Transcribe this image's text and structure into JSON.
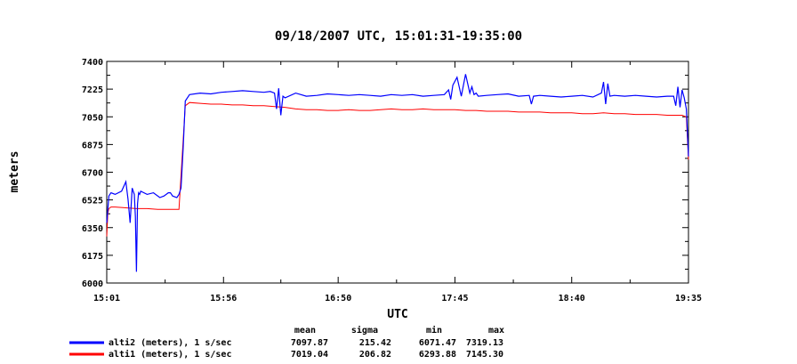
{
  "chart_data": {
    "type": "line",
    "title": "09/18/2007  UTC, 15:01:31-19:35:00",
    "xlabel": "UTC",
    "ylabel": "meters",
    "x_ticks": [
      "15:01",
      "15:56",
      "16:50",
      "17:45",
      "18:40",
      "19:35"
    ],
    "x_tick_minutes": [
      901,
      956,
      1010,
      1065,
      1120,
      1175
    ],
    "xlim_minutes": [
      901,
      1175
    ],
    "y_ticks": [
      "6000",
      "6175",
      "6350",
      "6525",
      "6700",
      "6875",
      "7050",
      "7225",
      "7400"
    ],
    "ylim": [
      6000,
      7400
    ],
    "grid": false,
    "legend_position": "bottom-left",
    "stat_headers": [
      "mean",
      "sigma",
      "min",
      "max"
    ],
    "series": [
      {
        "name": "alti2 (meters), 1 s/sec",
        "color": "#0000ff",
        "stats": [
          "7097.87",
          "215.42",
          "6071.47",
          "7319.13"
        ],
        "x_minutes": [
          901,
          902,
          903,
          905,
          908,
          910,
          911,
          912,
          913,
          914,
          914.5,
          915,
          915.5,
          916,
          916.5,
          917,
          920,
          923,
          926,
          928,
          930,
          931,
          932,
          934,
          935,
          936,
          937,
          938,
          940,
          945,
          950,
          955,
          960,
          965,
          970,
          975,
          978,
          980,
          981,
          982,
          983,
          984,
          985,
          990,
          995,
          1000,
          1005,
          1010,
          1015,
          1020,
          1025,
          1030,
          1035,
          1040,
          1045,
          1050,
          1055,
          1060,
          1062,
          1063,
          1064,
          1066,
          1068,
          1070,
          1072,
          1073,
          1074,
          1075,
          1076,
          1080,
          1085,
          1090,
          1095,
          1100,
          1101,
          1102,
          1105,
          1110,
          1115,
          1120,
          1125,
          1130,
          1134,
          1135,
          1136,
          1137,
          1138,
          1140,
          1145,
          1150,
          1155,
          1160,
          1165,
          1168,
          1169,
          1170,
          1171,
          1172,
          1173,
          1174,
          1175
        ],
        "values": [
          6380,
          6550,
          6570,
          6560,
          6580,
          6640,
          6530,
          6380,
          6600,
          6560,
          6420,
          6071,
          6500,
          6570,
          6560,
          6580,
          6560,
          6570,
          6540,
          6550,
          6570,
          6570,
          6550,
          6540,
          6560,
          6600,
          6850,
          7150,
          7190,
          7200,
          7195,
          7205,
          7210,
          7215,
          7210,
          7205,
          7210,
          7200,
          7100,
          7230,
          7060,
          7180,
          7170,
          7200,
          7180,
          7185,
          7195,
          7190,
          7185,
          7190,
          7185,
          7180,
          7190,
          7185,
          7190,
          7180,
          7185,
          7190,
          7220,
          7160,
          7250,
          7300,
          7180,
          7319,
          7200,
          7240,
          7190,
          7200,
          7180,
          7185,
          7190,
          7195,
          7180,
          7185,
          7130,
          7180,
          7185,
          7180,
          7175,
          7180,
          7185,
          7175,
          7200,
          7270,
          7130,
          7260,
          7180,
          7185,
          7180,
          7185,
          7180,
          7175,
          7180,
          7180,
          7120,
          7240,
          7110,
          7220,
          7170,
          7100,
          6800
        ]
      },
      {
        "name": "alti1 (meters), 1 s/sec",
        "color": "#ff0000",
        "stats": [
          "7019.04",
          "206.82",
          "6293.88",
          "7145.30"
        ],
        "x_minutes": [
          901,
          901.5,
          902,
          903,
          905,
          910,
          915,
          920,
          925,
          930,
          935,
          937,
          938,
          940,
          945,
          950,
          955,
          960,
          965,
          970,
          975,
          980,
          985,
          990,
          995,
          1000,
          1005,
          1010,
          1015,
          1020,
          1025,
          1030,
          1035,
          1040,
          1045,
          1050,
          1055,
          1060,
          1065,
          1070,
          1075,
          1080,
          1085,
          1090,
          1095,
          1100,
          1105,
          1110,
          1115,
          1120,
          1125,
          1130,
          1135,
          1140,
          1145,
          1150,
          1155,
          1160,
          1165,
          1170,
          1172,
          1174,
          1175
        ],
        "values": [
          6294,
          6440,
          6470,
          6480,
          6480,
          6475,
          6470,
          6470,
          6465,
          6465,
          6465,
          6900,
          7120,
          7140,
          7135,
          7130,
          7130,
          7125,
          7125,
          7120,
          7120,
          7115,
          7110,
          7100,
          7095,
          7095,
          7090,
          7090,
          7095,
          7090,
          7090,
          7095,
          7100,
          7095,
          7095,
          7100,
          7095,
          7095,
          7095,
          7090,
          7090,
          7085,
          7085,
          7085,
          7080,
          7080,
          7080,
          7075,
          7075,
          7075,
          7070,
          7070,
          7075,
          7070,
          7070,
          7065,
          7065,
          7065,
          7060,
          7060,
          7060,
          7050,
          6780
        ]
      }
    ]
  }
}
